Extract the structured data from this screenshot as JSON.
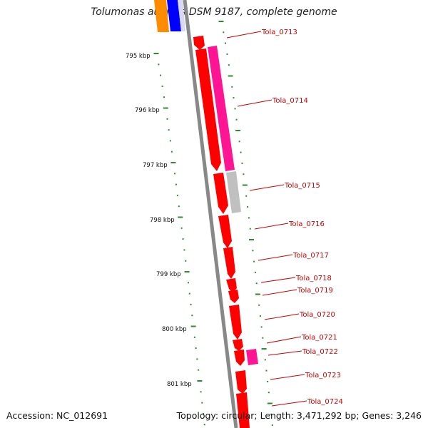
{
  "title": "Tolumonas auensis DSM 9187, complete genome",
  "footer": {
    "accession": "Accession: NC_012691",
    "summary": "Topology: circular; Length: 3,471,292 bp; Genes: 3,246"
  },
  "scale_labels": [
    "795 kbp",
    "796 kbp",
    "797 kbp",
    "798 kbp",
    "799 kbp",
    "800 kbp",
    "801 kbp"
  ],
  "genes": [
    {
      "label": "Tola_0713",
      "color": "#ff0000"
    },
    {
      "label": "Tola_0714",
      "color": "#ff0000"
    },
    {
      "label": "Tola_0715",
      "color": "#ff0000"
    },
    {
      "label": "Tola_0716",
      "color": "#ff0000"
    },
    {
      "label": "Tola_0717",
      "color": "#ff0000"
    },
    {
      "label": "Tola_0718",
      "color": "#ff0000"
    },
    {
      "label": "Tola_0719",
      "color": "#ff0000"
    },
    {
      "label": "Tola_0720",
      "color": "#ff0000"
    },
    {
      "label": "Tola_0721",
      "color": "#ff0000"
    },
    {
      "label": "Tola_0722",
      "color": "#ff0000"
    },
    {
      "label": "Tola_0723",
      "color": "#ff0000"
    },
    {
      "label": "Tola_0724",
      "color": "#ff0000"
    }
  ],
  "colors": {
    "backbone": "#888888",
    "cds": "#ff0000",
    "feature_pink": "#ff1493",
    "feature_gray": "#c0c0c0",
    "feature_orange": "#ff8c00",
    "feature_blue": "#0000ff",
    "tick": "#2e8b2e",
    "gene_label": "#cc0000"
  }
}
